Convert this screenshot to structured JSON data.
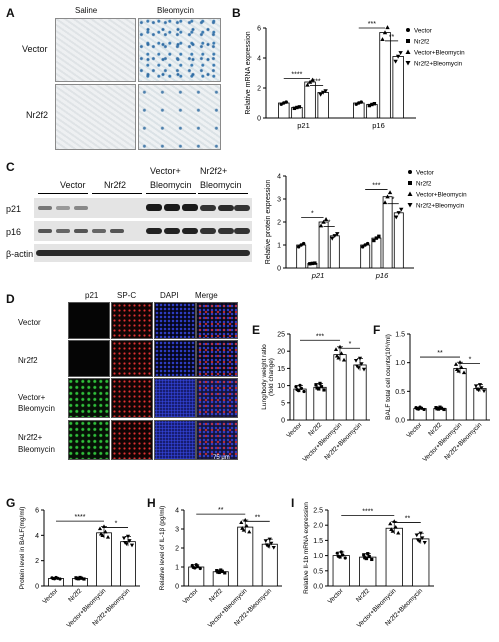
{
  "panels": {
    "A": "A",
    "B": "B",
    "C": "C",
    "D": "D",
    "E": "E",
    "F": "F",
    "G": "G",
    "H": "H",
    "I": "I"
  },
  "panel_a": {
    "col_saline": "Saline",
    "col_bleomycin": "Bleomycin",
    "row_vector": "Vector",
    "row_nr2f2": "Nr2f2"
  },
  "panel_c_wb": {
    "col_vector": "Vector",
    "col_nr2f2": "Nr2f2",
    "col_vb_1": "Vector+",
    "col_vb_2": "Bleomycin",
    "col_nb_1": "Nr2f2+",
    "col_nb_2": "Bleomycin",
    "row_p21": "p21",
    "row_p16": "p16",
    "row_actin": "β-actin"
  },
  "panel_d": {
    "col_p21": "p21",
    "col_spc": "SP-C",
    "col_dapi": "DAPI",
    "col_merge": "Merge",
    "row_vector": "Vector",
    "row_nr2f2": "Nr2f2",
    "row_vb_1": "Vector+",
    "row_vb_2": "Bleomycin",
    "row_nb_1": "Nr2f2+",
    "row_nb_2": "Bleomycin",
    "scale": "75 μm"
  },
  "legend": {
    "vector": "Vector",
    "nr2f2": "Nr2f2",
    "vb": "Vector+Bleomycin",
    "nb": "Nr2f2+Bleomycin"
  },
  "colors": {
    "bar_fill": "#ffffff",
    "bar_stroke": "#000000",
    "point": "#000000",
    "wb_band": "#1a1a1a",
    "stain_blue": "#2f6ca3",
    "fl_green": "#2fbf3a",
    "fl_red": "#e03030",
    "fl_blue": "#3040d0"
  },
  "chart_data": [
    {
      "panel": "B",
      "type": "bar",
      "ylabel": "Relative mRNA expression",
      "categories": [
        "p21",
        "p16"
      ],
      "ylim": [
        0,
        6
      ],
      "yticks": [
        "0",
        "2",
        "4",
        "6"
      ],
      "series": [
        {
          "name": "Vector",
          "values": [
            1.0,
            1.0
          ]
        },
        {
          "name": "Nr2f2",
          "values": [
            0.7,
            0.9
          ]
        },
        {
          "name": "Vector+Bleomycin",
          "values": [
            2.4,
            5.7
          ]
        },
        {
          "name": "Nr2f2+Bleomycin",
          "values": [
            1.7,
            4.1
          ]
        }
      ],
      "significance": [
        {
          "group": "p21",
          "from": 0,
          "to": 2,
          "text": "****"
        },
        {
          "group": "p21",
          "from": 2,
          "to": 3,
          "text": "***"
        },
        {
          "group": "p16",
          "from": 0,
          "to": 2,
          "text": "***"
        },
        {
          "group": "p16",
          "from": 2,
          "to": 3,
          "text": "**"
        }
      ]
    },
    {
      "panel": "C",
      "type": "bar",
      "ylabel": "Relative protein expression",
      "categories": [
        "p21",
        "p16"
      ],
      "ylim": [
        0,
        4
      ],
      "yticks": [
        "0",
        "1",
        "2",
        "3",
        "4"
      ],
      "series": [
        {
          "name": "Vector",
          "values": [
            1.0,
            1.0
          ]
        },
        {
          "name": "Nr2f2",
          "values": [
            0.2,
            1.3
          ]
        },
        {
          "name": "Vector+Bleomycin",
          "values": [
            2.0,
            3.1
          ]
        },
        {
          "name": "Nr2f2+Bleomycin",
          "values": [
            1.4,
            2.4
          ]
        }
      ],
      "significance": [
        {
          "group": "p21",
          "from": 0,
          "to": 2,
          "text": "*"
        },
        {
          "group": "p21",
          "from": 2,
          "to": 3,
          "text": "*"
        },
        {
          "group": "p16",
          "from": 0,
          "to": 2,
          "text": "***"
        },
        {
          "group": "p16",
          "from": 2,
          "to": 3,
          "text": "*"
        }
      ]
    },
    {
      "panel": "E",
      "type": "bar",
      "ylabel": "Lung/body weight ratio (fold change)",
      "ylabel_1": "Lung/body weight ratio",
      "ylabel_2": "(fold change)",
      "categories": [
        "Vector",
        "Nr2f2",
        "Vector+Bleomycin",
        "Nr2f2+Bleomycin"
      ],
      "ylim": [
        0,
        25
      ],
      "yticks": [
        "0",
        "5",
        "10",
        "15",
        "20",
        "25"
      ],
      "values": [
        9.0,
        9.5,
        19.0,
        16.0
      ],
      "significance": [
        {
          "from": 0,
          "to": 2,
          "text": "***"
        },
        {
          "from": 2,
          "to": 3,
          "text": "*"
        }
      ]
    },
    {
      "panel": "F",
      "type": "bar",
      "ylabel": "BALF total cell counts(10⁶/ml)",
      "categories": [
        "Vector",
        "Nr2f2",
        "Vector+Bleomycin",
        "Nr2f2+Bleomycin"
      ],
      "ylim": [
        0,
        1.5
      ],
      "yticks": [
        "0.0",
        "0.5",
        "1.0",
        "1.5"
      ],
      "values": [
        0.2,
        0.2,
        0.9,
        0.55
      ],
      "significance": [
        {
          "from": 0,
          "to": 2,
          "text": "**"
        },
        {
          "from": 2,
          "to": 3,
          "text": "*"
        }
      ]
    },
    {
      "panel": "G",
      "type": "bar",
      "ylabel": "Protein level in BALF(mg/ml)",
      "categories": [
        "Vector",
        "Nr2f2",
        "Vector+Bleomycin",
        "Nr2f2+Bleomycin"
      ],
      "ylim": [
        0,
        6
      ],
      "yticks": [
        "0",
        "2",
        "4",
        "6"
      ],
      "values": [
        0.6,
        0.6,
        4.2,
        3.5
      ],
      "significance": [
        {
          "from": 0,
          "to": 2,
          "text": "****"
        },
        {
          "from": 2,
          "to": 3,
          "text": "*"
        }
      ]
    },
    {
      "panel": "H",
      "type": "bar",
      "ylabel": "Relative level of IL-1β (pg/ml)",
      "categories": [
        "Vector",
        "Nr2f2",
        "Vector+Bleomycin",
        "Nr2f2+Bleomycin"
      ],
      "ylim": [
        0,
        4
      ],
      "yticks": [
        "0",
        "1",
        "2",
        "3",
        "4"
      ],
      "values": [
        1.0,
        0.75,
        3.1,
        2.2
      ],
      "significance": [
        {
          "from": 0,
          "to": 2,
          "text": "**"
        },
        {
          "from": 2,
          "to": 3,
          "text": "**"
        }
      ]
    },
    {
      "panel": "I",
      "type": "bar",
      "ylabel": "Relative Il-1b mRNA expression",
      "categories": [
        "Vector",
        "Nr2f2",
        "Vector+Bleomycin",
        "Nr2f2+Bleomycin"
      ],
      "ylim": [
        0,
        2.5
      ],
      "yticks": [
        "0.0",
        "0.5",
        "1.0",
        "1.5",
        "2.0",
        "2.5"
      ],
      "values": [
        1.0,
        0.95,
        1.9,
        1.55
      ],
      "significance": [
        {
          "from": 0,
          "to": 2,
          "text": "****"
        },
        {
          "from": 2,
          "to": 3,
          "text": "**"
        }
      ]
    }
  ]
}
